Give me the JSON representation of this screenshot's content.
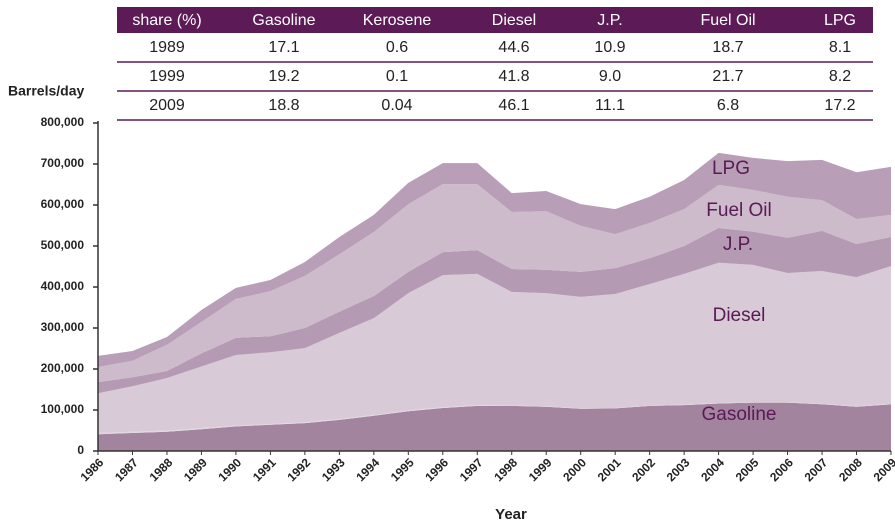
{
  "table": {
    "header": [
      "share (%)",
      "Gasoline",
      "Kerosene",
      "Diesel",
      "J.P.",
      "Fuel  Oil",
      "LPG"
    ],
    "rows": [
      [
        "1989",
        "17.1",
        "0.6",
        "44.6",
        "10.9",
        "18.7",
        "8.1"
      ],
      [
        "1999",
        "19.2",
        "0.1",
        "41.8",
        "9.0",
        "21.7",
        "8.2"
      ],
      [
        "2009",
        "18.8",
        "0.04",
        "46.1",
        "11.1",
        "6.8",
        "17.2"
      ]
    ]
  },
  "chart_data": {
    "type": "stacked_area",
    "y_label": "Barrels/day",
    "x_label": "Year",
    "x": [
      1986,
      1987,
      1988,
      1989,
      1990,
      1991,
      1992,
      1993,
      1994,
      1995,
      1996,
      1997,
      1998,
      1999,
      2000,
      2001,
      2002,
      2003,
      2004,
      2005,
      2006,
      2007,
      2008,
      2009
    ],
    "xlim": [
      1986,
      2009
    ],
    "ylim": [
      0,
      800000
    ],
    "yticks": [
      0,
      {
        "value": 100000,
        "label": "100,000"
      },
      {
        "value": 200000,
        "label": "200,000"
      },
      {
        "value": 300000,
        "label": "300,000"
      },
      {
        "value": 400000,
        "label": "400,000"
      },
      {
        "value": 500000,
        "label": "500,000"
      },
      {
        "value": 600000,
        "label": "600,000"
      },
      {
        "value": 700000,
        "label": "700,000"
      },
      {
        "value": 800000,
        "label": "800,000"
      }
    ],
    "series": [
      {
        "name": "Gasoline",
        "color": "#a3849f",
        "values": [
          41000,
          44000,
          47000,
          53000,
          60000,
          64000,
          68000,
          76000,
          86000,
          97000,
          105000,
          110000,
          110000,
          108000,
          103000,
          104000,
          110000,
          112000,
          116000,
          118000,
          118000,
          114000,
          108000,
          114000
        ]
      },
      {
        "name": "Kerosene",
        "color": "#e2d6e0",
        "values": [
          3000,
          3000,
          3000,
          3000,
          2000,
          2000,
          2000,
          2000,
          2000,
          2000,
          2000,
          2000,
          1000,
          1000,
          1000,
          1000,
          1000,
          1000,
          1000,
          1000,
          1000,
          1000,
          1000,
          1000
        ]
      },
      {
        "name": "Diesel",
        "color": "#d8cad6",
        "values": [
          97000,
          111000,
          128000,
          150000,
          172000,
          175000,
          181000,
          210000,
          236000,
          286000,
          322000,
          320000,
          277000,
          276000,
          272000,
          278000,
          296000,
          319000,
          342000,
          335000,
          315000,
          324000,
          315000,
          336000
        ]
      },
      {
        "name": "J.P.",
        "color": "#b59ab3",
        "values": [
          27000,
          22000,
          17000,
          32000,
          42000,
          39000,
          49000,
          52000,
          54000,
          52000,
          56000,
          58000,
          56000,
          57000,
          61000,
          63000,
          63000,
          68000,
          85000,
          81000,
          86000,
          98000,
          81000,
          71000
        ]
      },
      {
        "name": "Fuel  Oil",
        "color": "#cdbacb",
        "values": [
          37000,
          40000,
          64000,
          77000,
          95000,
          110000,
          127000,
          140000,
          156000,
          165000,
          166000,
          161000,
          139000,
          143000,
          112000,
          83000,
          86000,
          90000,
          105000,
          102000,
          100000,
          75000,
          61000,
          54000
        ]
      },
      {
        "name": "LPG",
        "color": "#b89eb6",
        "values": [
          27000,
          24000,
          19000,
          29000,
          27000,
          27000,
          34000,
          42000,
          42000,
          52000,
          51000,
          51000,
          46000,
          49000,
          53000,
          61000,
          64000,
          71000,
          78000,
          78000,
          87000,
          98000,
          114000,
          117000
        ]
      }
    ]
  }
}
